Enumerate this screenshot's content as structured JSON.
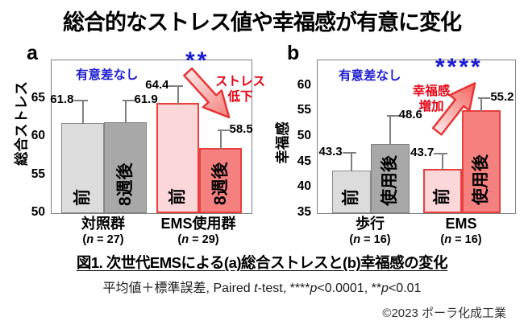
{
  "title": "総合的なストレス値や幸福感が有意に変化",
  "caption": "図1. 次世代EMSによる(a)総合ストレスと(b)幸福感の変化",
  "stats_note": {
    "segments": [
      {
        "t": "平均値＋標準誤差, Paired "
      },
      {
        "t": "t",
        "i": true
      },
      {
        "t": "-test, ****"
      },
      {
        "t": "p",
        "i": true
      },
      {
        "t": "<0.0001, **"
      },
      {
        "t": "p",
        "i": true
      },
      {
        "t": "<0.01"
      }
    ]
  },
  "copyright": "©2023 ポーラ化成工業",
  "colors": {
    "annotation_blue": "#1b1bd1",
    "annotation_red": "#e60012",
    "bar_gray_light": "#dcdcdc",
    "bar_gray_dark": "#a8a8a8",
    "bar_pink_light": "#fcd7d9",
    "bar_pink_dark": "#f58080",
    "pink_border": "#e8403d",
    "error_bar_gray": "#7f7f7f"
  },
  "chart_data": [
    {
      "id": "a",
      "type": "bar",
      "panel_label": "a",
      "ylabel": "総合ストレス",
      "ymin": 50,
      "ymax": 70,
      "yticks": [
        50,
        55,
        60,
        65
      ],
      "grid": false,
      "groups": [
        {
          "label": "対照群",
          "n_segments": [
            {
              "t": "("
            },
            {
              "t": "n",
              "i": true
            },
            {
              "t": " = 27)"
            }
          ],
          "bars": [
            {
              "label": "前",
              "value": 61.8,
              "error": 3.2,
              "style": "gray-light",
              "value_side": "left"
            },
            {
              "label": "8週後",
              "value": 61.9,
              "error": 3.0,
              "style": "gray-dark",
              "value_side": "right"
            }
          ]
        },
        {
          "label": "EMS使用群",
          "n_segments": [
            {
              "t": "("
            },
            {
              "t": "n",
              "i": true
            },
            {
              "t": " = 29)"
            }
          ],
          "bars": [
            {
              "label": "前",
              "value": 64.4,
              "error": 2.6,
              "style": "pink-light",
              "value_side": "left"
            },
            {
              "label": "8週後",
              "value": 58.5,
              "error": 2.7,
              "style": "pink-dark",
              "value_side": "right"
            }
          ]
        }
      ],
      "annotations": {
        "ns_label": "有意差なし",
        "sig_label": "**",
        "arrow_lines": [
          "ストレス",
          "低下"
        ],
        "arrow_direction": "down-right"
      }
    },
    {
      "id": "b",
      "type": "bar",
      "panel_label": "b",
      "ylabel": "幸福感",
      "ymin": 35,
      "ymax": 65,
      "yticks": [
        35,
        40,
        45,
        50,
        55,
        60
      ],
      "grid": false,
      "groups": [
        {
          "label": "歩行",
          "n_segments": [
            {
              "t": "("
            },
            {
              "t": "n",
              "i": true
            },
            {
              "t": " = 16)"
            }
          ],
          "bars": [
            {
              "label": "前",
              "value": 43.3,
              "error": 3.9,
              "style": "gray-light",
              "value_side": "left"
            },
            {
              "label": "使用後",
              "value": 48.6,
              "error": 5.8,
              "style": "gray-dark",
              "value_side": "right"
            }
          ]
        },
        {
          "label": "EMS",
          "n_segments": [
            {
              "t": "("
            },
            {
              "t": "n",
              "i": true
            },
            {
              "t": " = 16)"
            }
          ],
          "bars": [
            {
              "label": "前",
              "value": 43.7,
              "error": 3.5,
              "style": "pink-light",
              "value_side": "left"
            },
            {
              "label": "使用後",
              "value": 55.2,
              "error": 2.8,
              "style": "pink-dark",
              "value_side": "right"
            }
          ]
        }
      ],
      "annotations": {
        "ns_label": "有意差なし",
        "sig_label": "****",
        "arrow_lines": [
          "幸福感",
          "増加"
        ],
        "arrow_direction": "up-right"
      }
    }
  ]
}
